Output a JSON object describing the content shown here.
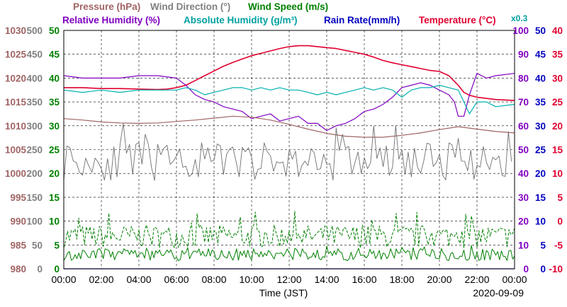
{
  "chart_data": {
    "type": "line",
    "legend": [
      {
        "label": "Pressure (hPa)",
        "color": "#a06464"
      },
      {
        "label": "Wind Direction (°)",
        "color": "#808080"
      },
      {
        "label": "Wind Speed (m/s)",
        "color": "#008000"
      },
      {
        "label": "Relative Humidity (%)",
        "color": "#8000c0"
      },
      {
        "label": "Absolute Humidity (g/m³)",
        "color": "#00a0a0"
      },
      {
        "label": "Rain Rate(mm/h)",
        "color": "#0000c0"
      },
      {
        "label": "Temperature (°C)",
        "color": "#e00030"
      }
    ],
    "scale_note": "x0.3",
    "xlabel": "Time (JST)",
    "date": "2020-09-09",
    "x_ticks": [
      "00:00",
      "02:00",
      "04:00",
      "06:00",
      "08:00",
      "10:00",
      "12:00",
      "14:00",
      "16:00",
      "18:00",
      "20:00",
      "22:00",
      "00:00"
    ],
    "xlim": [
      0,
      24
    ],
    "grid": true,
    "axes": {
      "pressure": {
        "color": "#a06464",
        "range": [
          980,
          1030
        ],
        "ticks": [
          "1030",
          "1025",
          "1020",
          "1015",
          "1010",
          "1005",
          "1000",
          "995",
          "990",
          "985",
          "980"
        ]
      },
      "wind_direction": {
        "color": "#808080",
        "range": [
          0,
          500
        ],
        "ticks": [
          "500",
          "450",
          "400",
          "350",
          "300",
          "250",
          "200",
          "150",
          "100",
          "50",
          "0"
        ]
      },
      "wind_speed": {
        "color": "#008000",
        "range": [
          0,
          50
        ],
        "ticks": [
          "50",
          "45",
          "40",
          "35",
          "30",
          "25",
          "20",
          "15",
          "10",
          "5",
          "0"
        ]
      },
      "humidity": {
        "color": "#8000c0",
        "range": [
          0,
          100
        ],
        "ticks": [
          "100",
          "90",
          "80",
          "70",
          "60",
          "50",
          "40",
          "30",
          "20",
          "10",
          "0"
        ]
      },
      "rain_rate": {
        "color": "#0000c0",
        "range": [
          0,
          50
        ],
        "ticks": [
          "50",
          "45",
          "40",
          "35",
          "30",
          "25",
          "20",
          "15",
          "10",
          "5",
          "0"
        ]
      },
      "temperature": {
        "color": "#e00030",
        "range": [
          -10,
          40
        ],
        "ticks": [
          "40",
          "35",
          "30",
          "25",
          "20",
          "15",
          "10",
          "5",
          "0",
          "-5",
          "-10"
        ]
      }
    },
    "series": [
      {
        "name": "Temperature (°C)",
        "axis": "temperature",
        "color": "#e00030",
        "width": 1.6,
        "x": [
          0,
          1,
          2,
          3,
          4,
          5,
          5.5,
          6,
          6.5,
          7,
          7.5,
          8,
          8.5,
          9,
          9.5,
          10,
          10.5,
          11,
          11.5,
          12,
          12.5,
          13,
          13.5,
          14,
          14.5,
          15,
          15.5,
          16,
          16.5,
          17,
          17.5,
          18,
          18.5,
          19,
          19.5,
          20,
          20.5,
          21,
          21.3,
          21.6,
          22,
          23,
          24
        ],
        "y": [
          28,
          28,
          27.8,
          27.8,
          27.7,
          27.6,
          27.7,
          28,
          28.5,
          29.5,
          30.5,
          31.5,
          32.5,
          33.3,
          34,
          34.7,
          35.2,
          35.7,
          36.2,
          36.6,
          36.8,
          36.8,
          36.6,
          36.4,
          36.2,
          35.8,
          35.4,
          35,
          34.4,
          33.7,
          33.2,
          32.8,
          32.4,
          32,
          31.6,
          31.4,
          30.5,
          28.5,
          27,
          26.4,
          26,
          25.5,
          25.3
        ]
      },
      {
        "name": "Relative Humidity (%)",
        "axis": "humidity",
        "color": "#8000c0",
        "width": 1.2,
        "x": [
          0,
          1,
          2,
          3,
          4,
          5,
          6,
          6.5,
          7,
          7.5,
          8,
          8.5,
          9,
          9.5,
          10,
          10.5,
          11,
          11.5,
          12,
          12.5,
          13,
          13.5,
          14,
          14.5,
          15,
          15.5,
          16,
          16.5,
          17,
          17.5,
          18,
          18.5,
          19,
          19.5,
          20,
          20.5,
          20.8,
          21,
          21.3,
          21.6,
          22,
          22.5,
          23,
          24
        ],
        "y": [
          81,
          80,
          80,
          80,
          81,
          81,
          80,
          77,
          73,
          71,
          70,
          68,
          67,
          66,
          63,
          64,
          65,
          62,
          63,
          64,
          61,
          61,
          58,
          60,
          61,
          63,
          66,
          67,
          69,
          72,
          76,
          77,
          78,
          77,
          75,
          73,
          70,
          64,
          64,
          73,
          82,
          80,
          81,
          82
        ]
      },
      {
        "name": "Absolute Humidity (g/m³)",
        "axis": "humidity",
        "color": "#00b0b0",
        "width": 1.2,
        "x": [
          0,
          1,
          2,
          3,
          4,
          5,
          6,
          6.5,
          7,
          7.5,
          8,
          8.5,
          9,
          9.5,
          10,
          10.5,
          11,
          11.5,
          12,
          12.5,
          13,
          13.5,
          14,
          14.5,
          15,
          15.5,
          16,
          16.5,
          17,
          17.5,
          18,
          18.5,
          19,
          19.5,
          20,
          20.5,
          21,
          21.3,
          21.6,
          22,
          22.5,
          23,
          24
        ],
        "y": [
          75,
          74,
          75,
          74,
          75,
          75,
          75,
          76,
          75,
          73,
          74,
          75,
          76,
          76,
          75,
          76,
          75,
          76,
          75,
          75,
          74,
          73,
          74,
          73,
          74,
          75,
          76,
          75,
          76,
          75,
          72,
          75,
          76,
          76,
          77,
          76,
          75,
          70,
          65,
          70,
          70,
          68,
          69
        ]
      },
      {
        "name": "Pressure (hPa)",
        "axis": "pressure",
        "color": "#a06464",
        "width": 1.2,
        "x": [
          0,
          1,
          2,
          3,
          4,
          5,
          6,
          7,
          8,
          9,
          10,
          11,
          12,
          13,
          14,
          15,
          16,
          17,
          18,
          19,
          20,
          21,
          22,
          23,
          24
        ],
        "y": [
          1011.5,
          1011.2,
          1010.8,
          1010.6,
          1010.5,
          1010.6,
          1010.9,
          1011.2,
          1011.6,
          1012,
          1011.8,
          1011.2,
          1010.3,
          1009.3,
          1008.4,
          1007.8,
          1007.6,
          1007.6,
          1008,
          1008.5,
          1009.2,
          1009.8,
          1009.3,
          1008.8,
          1008.5
        ]
      },
      {
        "name": "Wind Direction (°)",
        "axis": "wind_direction",
        "color": "#707070",
        "width": 0.9,
        "sampled": true,
        "step": 0.1667,
        "mean": 225,
        "spread": 40,
        "seed": 11
      },
      {
        "name": "Wind Speed max (m/s)",
        "axis": "wind_speed",
        "color": "#008000",
        "width": 1.0,
        "dashed": true,
        "sampled": true,
        "step": 0.1,
        "mean": 6.8,
        "spread": 2.4,
        "seed": 7
      },
      {
        "name": "Wind Speed (m/s)",
        "axis": "wind_speed",
        "color": "#008000",
        "width": 1.0,
        "sampled": true,
        "step": 0.1,
        "mean": 3.0,
        "spread": 1.3,
        "seed": 3
      },
      {
        "name": "Rain Rate(mm/h)",
        "axis": "rain_rate",
        "color": "#0000c0",
        "width": 1.2,
        "x": [
          0,
          24
        ],
        "y": [
          0,
          0
        ]
      }
    ]
  }
}
